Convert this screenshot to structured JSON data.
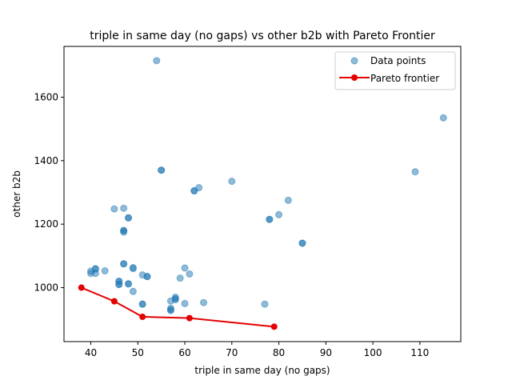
{
  "chart_data": {
    "type": "scatter",
    "title": "triple in same day (no gaps) vs other b2b with Pareto Frontier",
    "xlabel": "triple in same day (no gaps)",
    "ylabel": "other b2b",
    "xlim": [
      34.3,
      118.7
    ],
    "ylim": [
      830,
      1760
    ],
    "xticks": [
      40,
      50,
      60,
      70,
      80,
      90,
      100,
      110
    ],
    "yticks": [
      1000,
      1200,
      1400,
      1600
    ],
    "grid": false,
    "legend_position": "top-right",
    "colors": {
      "points": "#1f77b4",
      "frontier": "#e50000"
    },
    "series": [
      {
        "name": "Data points",
        "kind": "scatter",
        "points": [
          [
            54,
            1715
          ],
          [
            115,
            1535
          ],
          [
            55,
            1370
          ],
          [
            55,
            1370
          ],
          [
            109,
            1365
          ],
          [
            70,
            1335
          ],
          [
            63,
            1315
          ],
          [
            62,
            1305
          ],
          [
            62,
            1305
          ],
          [
            82,
            1275
          ],
          [
            45,
            1248
          ],
          [
            47,
            1250
          ],
          [
            80,
            1230
          ],
          [
            48,
            1220
          ],
          [
            48,
            1220
          ],
          [
            78,
            1215
          ],
          [
            78,
            1215
          ],
          [
            47,
            1180
          ],
          [
            47,
            1175
          ],
          [
            47,
            1180
          ],
          [
            85,
            1140
          ],
          [
            85,
            1140
          ],
          [
            47,
            1075
          ],
          [
            47,
            1075
          ],
          [
            49,
            1063
          ],
          [
            49,
            1060
          ],
          [
            60,
            1062
          ],
          [
            41,
            1060
          ],
          [
            41,
            1058
          ],
          [
            40,
            1052
          ],
          [
            43,
            1053
          ],
          [
            41,
            1045
          ],
          [
            40,
            1045
          ],
          [
            61,
            1043
          ],
          [
            51,
            1040
          ],
          [
            52,
            1035
          ],
          [
            52,
            1035
          ],
          [
            59,
            1030
          ],
          [
            46,
            1020
          ],
          [
            46,
            1020
          ],
          [
            46,
            1010
          ],
          [
            46,
            1010
          ],
          [
            48,
            1012
          ],
          [
            48,
            1012
          ],
          [
            49,
            988
          ],
          [
            58,
            970
          ],
          [
            58,
            965
          ],
          [
            58,
            962
          ],
          [
            57,
            958
          ],
          [
            64,
            953
          ],
          [
            60,
            950
          ],
          [
            51,
            948
          ],
          [
            51,
            948
          ],
          [
            77,
            948
          ],
          [
            57,
            935
          ],
          [
            57,
            930
          ],
          [
            57,
            928
          ]
        ]
      },
      {
        "name": "Pareto frontier",
        "kind": "line",
        "points": [
          [
            38,
            1000
          ],
          [
            45,
            957
          ],
          [
            51,
            908
          ],
          [
            61,
            904
          ],
          [
            79,
            877
          ]
        ]
      }
    ]
  }
}
